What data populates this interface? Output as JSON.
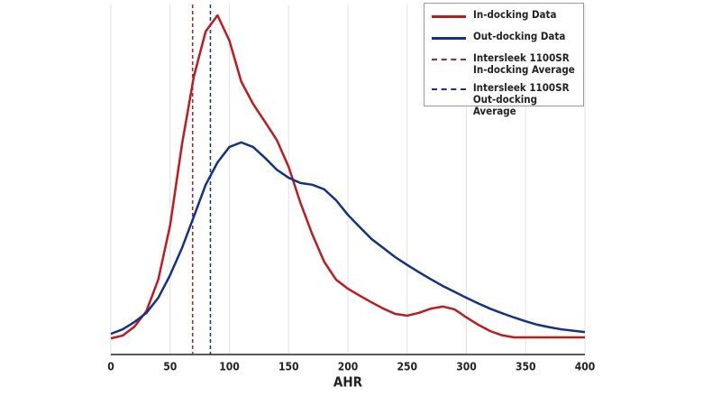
{
  "chart_data": {
    "type": "line",
    "x_label": "AHR",
    "x": [
      0,
      10,
      20,
      30,
      40,
      50,
      60,
      70,
      80,
      90,
      100,
      110,
      120,
      130,
      140,
      150,
      160,
      170,
      180,
      190,
      200,
      210,
      220,
      230,
      240,
      250,
      260,
      270,
      280,
      290,
      300,
      310,
      320,
      330,
      340,
      350,
      360,
      370,
      380,
      390,
      400
    ],
    "series": [
      {
        "name": "In-docking Data",
        "color": "#c0191e",
        "values": [
          4.6,
          5.4,
          8,
          12.4,
          21.4,
          36.9,
          60,
          79.4,
          92.3,
          96.9,
          89.7,
          78,
          71.6,
          66.5,
          61.3,
          53.6,
          43.3,
          34.3,
          26.5,
          21.4,
          18.8,
          16.8,
          14.9,
          13.1,
          11.6,
          11.1,
          11.9,
          13.1,
          13.7,
          12.9,
          10.6,
          8.5,
          6.7,
          5.5,
          4.9,
          4.9,
          4.9,
          4.9,
          4.9,
          4.9,
          4.9
        ]
      },
      {
        "name": "Out-docking Data",
        "color": "#12318a",
        "values": [
          5.9,
          7.2,
          9.3,
          11.9,
          16.2,
          22.7,
          30.4,
          39.4,
          48.5,
          54.9,
          59.3,
          60.6,
          59.3,
          56.2,
          52.8,
          50.5,
          49,
          48.5,
          47.2,
          44.1,
          39.9,
          36.4,
          33,
          30.4,
          27.8,
          25.6,
          23.5,
          21.5,
          19.6,
          17.9,
          16.2,
          14.6,
          13.1,
          11.8,
          10.6,
          9.5,
          8.5,
          7.8,
          7.2,
          6.8,
          6.4
        ]
      }
    ],
    "vlines": [
      {
        "name": "Intersleek 1100SR\nIn-docking Average",
        "color": "#c0191e",
        "x": 69
      },
      {
        "name": "Intersleek 1100SR\nOut-docking Average",
        "color": "#12318a",
        "x": 84
      }
    ],
    "xlim": [
      0,
      400
    ],
    "xticks": [
      0,
      50,
      100,
      150,
      200,
      250,
      300,
      350,
      400
    ],
    "ylim": [
      0,
      100
    ],
    "grid": true,
    "legend": "top-right"
  }
}
